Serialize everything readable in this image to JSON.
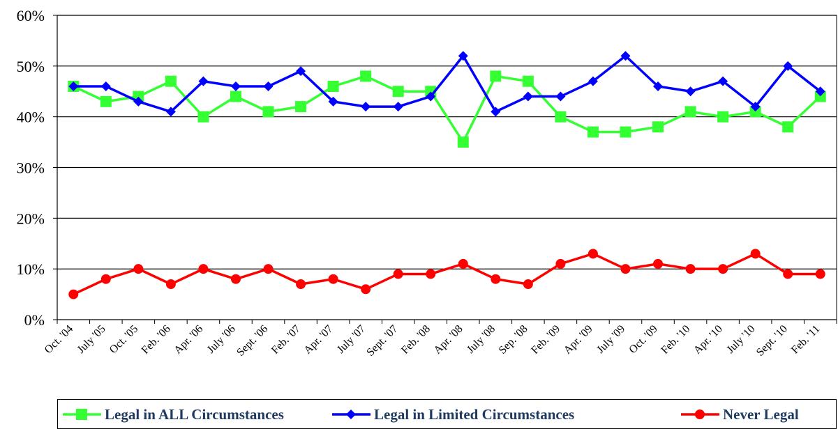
{
  "chart_data": {
    "type": "line",
    "categories": [
      "Oct. '04",
      "July '05",
      "Oct. '05",
      "Feb. '06",
      "Apr. '06",
      "July '06",
      "Sept. '06",
      "Feb. '07",
      "Apr. '07",
      "July '07",
      "Sept. '07",
      "Feb. '08",
      "Apr. '08",
      "July '08",
      "Sep. '08",
      "Feb. '09",
      "Apr. '09",
      "July '09",
      "Oct. '09",
      "Feb. '10",
      "Apr. '10",
      "July '10",
      "Sept. '10",
      "Feb. '11"
    ],
    "series": [
      {
        "name": "Legal in ALL Circumstances",
        "color": "#33ff33",
        "marker": "square",
        "values": [
          46,
          43,
          44,
          47,
          40,
          44,
          41,
          42,
          46,
          48,
          45,
          45,
          35,
          48,
          47,
          40,
          37,
          37,
          38,
          41,
          40,
          41,
          38,
          44
        ]
      },
      {
        "name": "Legal in Limited Circumstances",
        "color": "#0000ff",
        "marker": "diamond",
        "values": [
          46,
          46,
          43,
          41,
          47,
          46,
          46,
          49,
          43,
          42,
          42,
          44,
          52,
          41,
          44,
          44,
          47,
          52,
          46,
          45,
          47,
          42,
          50,
          45
        ]
      },
      {
        "name": "Never Legal",
        "color": "#ff0000",
        "marker": "circle",
        "values": [
          5,
          8,
          10,
          7,
          10,
          8,
          10,
          7,
          8,
          6,
          9,
          9,
          11,
          8,
          7,
          11,
          13,
          10,
          11,
          10,
          10,
          13,
          9,
          9
        ]
      }
    ],
    "ylim": [
      0,
      60
    ],
    "yticks": [
      {
        "value": 0,
        "label": "0%"
      },
      {
        "value": 10,
        "label": "10%"
      },
      {
        "value": 20,
        "label": "20%"
      },
      {
        "value": 30,
        "label": "30%"
      },
      {
        "value": 40,
        "label": "40%"
      },
      {
        "value": 50,
        "label": "50%"
      },
      {
        "value": 60,
        "label": "60%"
      }
    ],
    "grid": true,
    "legend": "bottom"
  }
}
